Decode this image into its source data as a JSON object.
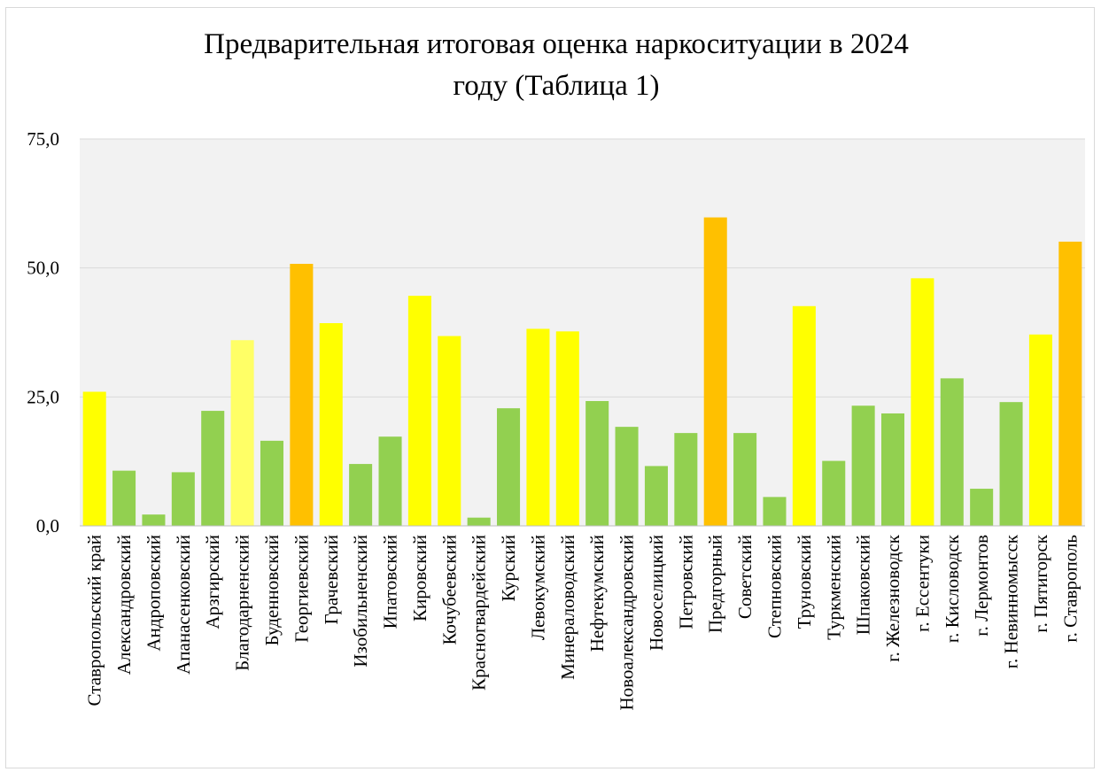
{
  "chart_data": {
    "type": "bar",
    "title": "Предварительная итоговая оценка наркоситуации в 2024 году (Таблица 1)",
    "title_lines": [
      "Предварительная итоговая оценка наркоситуации в 2024",
      "году (Таблица 1)"
    ],
    "ylim": [
      0,
      75
    ],
    "y_ticks": [
      "0,0",
      "25,0",
      "50,0",
      "75,0"
    ],
    "y_tick_values": [
      0,
      25,
      50,
      75
    ],
    "grid": "horizontal",
    "plot_background": "#f2f2f2",
    "colors": {
      "green": "#92d050",
      "yellow": "#ffff00",
      "light_yellow": "#ffff66",
      "orange": "#ffc000"
    },
    "categories": [
      "Ставропольский край",
      "Александровский",
      "Андроповский",
      "Апанасенковский",
      "Арзгирский",
      "Благодарненский",
      "Буденновский",
      "Георгиевский",
      "Грачевский",
      "Изобильненский",
      "Ипатовский",
      "Кировский",
      "Кочубеевский",
      "Красногвардейский",
      "Курский",
      "Левокумский",
      "Минераловодский",
      "Нефтекумский",
      "Новоалександровский",
      "Новоселицкий",
      "Петровский",
      "Предгорный",
      "Советский",
      "Степновский",
      "Труновский",
      "Туркменский",
      "Шпаковский",
      "г. Железноводск",
      "г. Ессентуки",
      "г. Кисловодск",
      "г. Лермонтов",
      "г. Невинномысск",
      "г. Пятигорск",
      "г. Ставрополь"
    ],
    "values": [
      26.0,
      10.7,
      2.2,
      10.4,
      22.3,
      36.0,
      16.5,
      50.8,
      39.3,
      12.0,
      17.3,
      44.6,
      36.8,
      1.6,
      22.8,
      38.2,
      37.7,
      24.2,
      19.2,
      11.6,
      18.0,
      59.8,
      18.0,
      5.6,
      42.6,
      12.6,
      23.3,
      21.8,
      48.0,
      28.6,
      7.2,
      24.0,
      37.1,
      55.1
    ],
    "bar_colors": [
      "yellow",
      "green",
      "green",
      "green",
      "green",
      "light_yellow",
      "green",
      "orange",
      "yellow",
      "green",
      "green",
      "yellow",
      "yellow",
      "green",
      "green",
      "yellow",
      "yellow",
      "green",
      "green",
      "green",
      "green",
      "orange",
      "green",
      "green",
      "yellow",
      "green",
      "green",
      "green",
      "yellow",
      "green",
      "green",
      "green",
      "yellow",
      "orange"
    ]
  }
}
